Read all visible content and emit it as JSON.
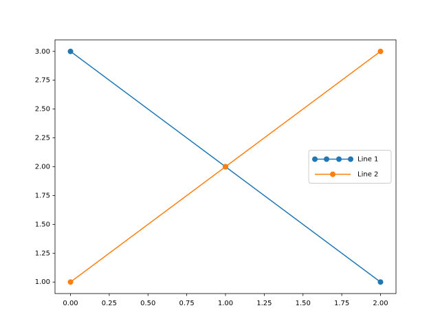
{
  "chart_data": {
    "type": "line",
    "x": [
      0,
      1,
      2
    ],
    "series": [
      {
        "name": "Line 1",
        "color": "#1f77b4",
        "values": [
          3,
          2,
          1
        ]
      },
      {
        "name": "Line 2",
        "color": "#ff7f0e",
        "values": [
          1,
          2,
          3
        ]
      }
    ],
    "xlim": [
      -0.1,
      2.1
    ],
    "xticks": [
      {
        "value": 0,
        "label": "0.00"
      },
      {
        "value": 0.25,
        "label": "0.25"
      },
      {
        "value": 0.5,
        "label": "0.50"
      },
      {
        "value": 0.75,
        "label": "0.75"
      },
      {
        "value": 1,
        "label": "1.00"
      },
      {
        "value": 1.25,
        "label": "1.25"
      },
      {
        "value": 1.5,
        "label": "1.50"
      },
      {
        "value": 1.75,
        "label": "1.75"
      },
      {
        "value": 2,
        "label": "2.00"
      }
    ],
    "ylim": [
      0.9,
      3.1
    ],
    "yticks": [
      {
        "value": 1,
        "label": "1.00"
      },
      {
        "value": 1.25,
        "label": "1.25"
      },
      {
        "value": 1.5,
        "label": "1.50"
      },
      {
        "value": 1.75,
        "label": "1.75"
      },
      {
        "value": 2,
        "label": "2.00"
      },
      {
        "value": 2.25,
        "label": "2.25"
      },
      {
        "value": 2.5,
        "label": "2.50"
      },
      {
        "value": 2.75,
        "label": "2.75"
      },
      {
        "value": 3,
        "label": "3.00"
      }
    ],
    "grid": false,
    "legend": "center right",
    "markers": true
  }
}
